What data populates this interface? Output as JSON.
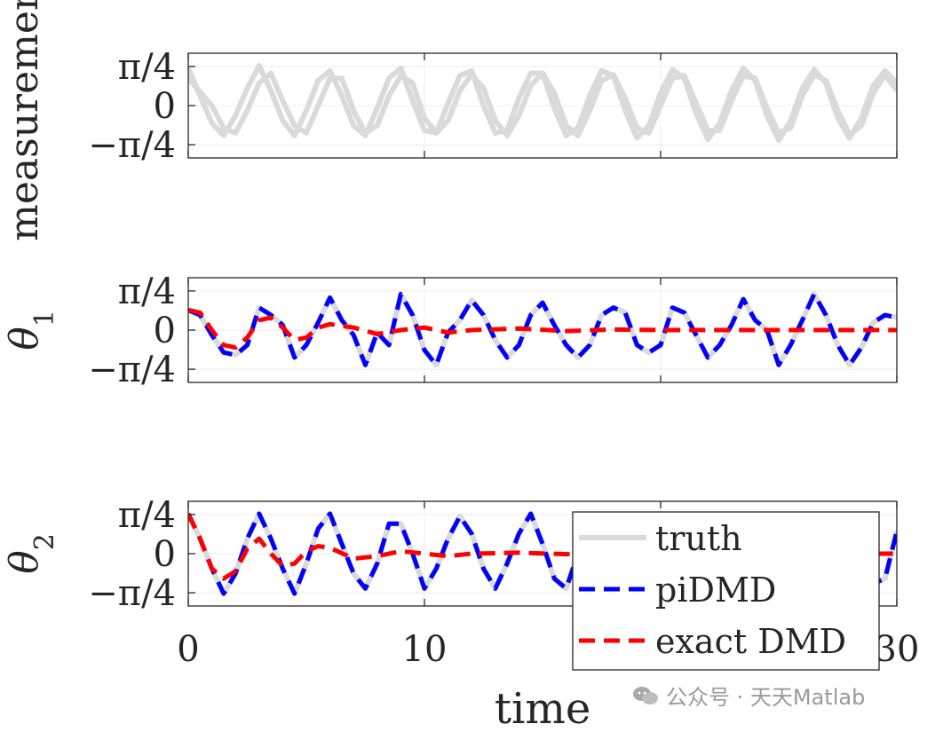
{
  "chart_data": [
    {
      "type": "line",
      "ylabel": "measurement",
      "xlabel": "",
      "xlim": [
        0,
        30
      ],
      "ylim": [
        -1.05,
        1.05
      ],
      "yticks": [
        "π/4",
        "0",
        "−π/4"
      ],
      "ytick_values": [
        0.785,
        0,
        -0.785
      ],
      "grid": true,
      "series": [
        {
          "role": "measurement-1",
          "color": "#dadada",
          "x": [
            0,
            1,
            1.5,
            2,
            2.5,
            3,
            3.5,
            4,
            4.5,
            5,
            5.5,
            6,
            6.5,
            7,
            7.5,
            8,
            8.5,
            9,
            9.5,
            10,
            10.5,
            11,
            11.5,
            12,
            12.5,
            13,
            13.5,
            14,
            14.5,
            15,
            15.5,
            16,
            16.5,
            17,
            17.5,
            18,
            18.5,
            19,
            19.5,
            20,
            20.5,
            21,
            21.5,
            22,
            22.5,
            23,
            23.5,
            24,
            24.5,
            25,
            25.5,
            26,
            26.5,
            27,
            27.5,
            28,
            28.5,
            29,
            29.5,
            30
          ],
          "y": [
            0.75,
            -0.35,
            -0.6,
            -0.2,
            0.35,
            0.8,
            0.3,
            -0.3,
            -0.6,
            -0.1,
            0.5,
            0.7,
            0.2,
            -0.4,
            -0.6,
            -0.05,
            0.55,
            0.75,
            0.1,
            -0.5,
            -0.55,
            0.05,
            0.6,
            0.7,
            0.0,
            -0.55,
            -0.5,
            0.15,
            0.65,
            0.65,
            -0.05,
            -0.6,
            -0.45,
            0.2,
            0.7,
            0.6,
            -0.1,
            -0.65,
            -0.4,
            0.25,
            0.72,
            0.55,
            -0.15,
            -0.68,
            -0.35,
            0.3,
            0.75,
            0.5,
            -0.2,
            -0.7,
            -0.3,
            0.35,
            0.72,
            0.45,
            -0.25,
            -0.65,
            -0.25,
            0.4,
            0.7,
            0.45
          ]
        },
        {
          "role": "measurement-2",
          "color": "#dadada",
          "x": [
            0,
            1,
            1.5,
            2,
            2.5,
            3,
            3.5,
            4,
            4.5,
            5,
            5.5,
            6,
            6.5,
            7,
            7.5,
            8,
            8.5,
            9,
            9.5,
            10,
            10.5,
            11,
            11.5,
            12,
            12.5,
            13,
            13.5,
            14,
            14.5,
            15,
            15.5,
            16,
            16.5,
            17,
            17.5,
            18,
            18.5,
            19,
            19.5,
            20,
            20.5,
            21,
            21.5,
            22,
            22.5,
            23,
            23.5,
            24,
            24.5,
            25,
            25.5,
            26,
            26.5,
            27,
            27.5,
            28,
            28.5,
            29,
            29.5,
            30
          ],
          "y": [
            0.55,
            0.0,
            -0.45,
            -0.55,
            -0.1,
            0.45,
            0.65,
            0.1,
            -0.4,
            -0.55,
            0.0,
            0.55,
            0.55,
            -0.1,
            -0.55,
            -0.4,
            0.2,
            0.6,
            0.45,
            -0.25,
            -0.55,
            -0.3,
            0.3,
            0.62,
            0.35,
            -0.3,
            -0.6,
            -0.2,
            0.4,
            0.65,
            0.25,
            -0.4,
            -0.6,
            -0.1,
            0.5,
            0.62,
            0.15,
            -0.45,
            -0.55,
            0.0,
            0.55,
            0.6,
            0.05,
            -0.5,
            -0.5,
            0.1,
            0.6,
            0.55,
            -0.05,
            -0.55,
            -0.45,
            0.2,
            0.62,
            0.5,
            -0.1,
            -0.58,
            -0.4,
            0.25,
            0.62,
            0.3
          ]
        }
      ]
    },
    {
      "type": "line",
      "ylabel": "θ1",
      "xlabel": "",
      "xlim": [
        0,
        30
      ],
      "ylim": [
        -1.05,
        1.05
      ],
      "yticks": [
        "π/4",
        "0",
        "−π/4"
      ],
      "ytick_values": [
        0.785,
        0,
        -0.785
      ],
      "grid": true,
      "series": [
        {
          "name": "truth",
          "color": "#dadada",
          "x": [
            0,
            0.5,
            1,
            1.5,
            2,
            2.5,
            3,
            3.5,
            4,
            4.5,
            5,
            5.5,
            6,
            6.5,
            7,
            7.5,
            8,
            8.5,
            9,
            9.5,
            10,
            10.5,
            11,
            11.5,
            12,
            12.5,
            13,
            13.5,
            14,
            14.5,
            15,
            15.5,
            16,
            16.5,
            17,
            17.5,
            18,
            18.5,
            19,
            19.5,
            20,
            20.5,
            21,
            21.5,
            22,
            22.5,
            23,
            23.5,
            24,
            24.5,
            25,
            25.5,
            26,
            26.5,
            27,
            27.5,
            28,
            28.5,
            29,
            29.5,
            30
          ],
          "y": [
            0.4,
            0.3,
            -0.1,
            -0.45,
            -0.5,
            -0.3,
            0.45,
            0.3,
            0.1,
            -0.55,
            -0.3,
            0.15,
            0.65,
            0.2,
            -0.1,
            -0.7,
            -0.05,
            -0.3,
            0.72,
            0.3,
            -0.4,
            -0.7,
            -0.05,
            0.2,
            0.6,
            0.3,
            -0.2,
            -0.55,
            -0.3,
            0.3,
            0.55,
            0.1,
            -0.3,
            -0.55,
            -0.3,
            0.3,
            0.45,
            0.35,
            -0.3,
            -0.45,
            -0.3,
            0.45,
            0.35,
            -0.1,
            -0.55,
            -0.3,
            0.1,
            0.62,
            0.2,
            0.0,
            -0.7,
            -0.3,
            0.2,
            0.72,
            0.3,
            -0.3,
            -0.7,
            -0.35,
            0.15,
            0.3,
            0.25
          ]
        },
        {
          "name": "piDMD",
          "color": "#0000ff",
          "x": [
            0,
            0.5,
            1,
            1.5,
            2,
            2.5,
            3,
            3.5,
            4,
            4.5,
            5,
            5.5,
            6,
            6.5,
            7,
            7.5,
            8,
            8.5,
            9,
            9.5,
            10,
            10.5,
            11,
            11.5,
            12,
            12.5,
            13,
            13.5,
            14,
            14.5,
            15,
            15.5,
            16,
            16.5,
            17,
            17.5,
            18,
            18.5,
            19,
            19.5,
            20,
            20.5,
            21,
            21.5,
            22,
            22.5,
            23,
            23.5,
            24,
            24.5,
            25,
            25.5,
            26,
            26.5,
            27,
            27.5,
            28,
            28.5,
            29,
            29.5,
            30
          ],
          "y": [
            0.4,
            0.3,
            -0.1,
            -0.45,
            -0.5,
            -0.3,
            0.45,
            0.3,
            0.1,
            -0.55,
            -0.3,
            0.15,
            0.65,
            0.2,
            -0.1,
            -0.7,
            -0.05,
            -0.3,
            0.72,
            0.3,
            -0.4,
            -0.7,
            -0.05,
            0.2,
            0.6,
            0.3,
            -0.2,
            -0.55,
            -0.3,
            0.3,
            0.55,
            0.1,
            -0.3,
            -0.55,
            -0.3,
            0.3,
            0.45,
            0.35,
            -0.3,
            -0.45,
            -0.3,
            0.45,
            0.35,
            -0.1,
            -0.55,
            -0.3,
            0.1,
            0.62,
            0.2,
            0.0,
            -0.7,
            -0.3,
            0.2,
            0.72,
            0.3,
            -0.3,
            -0.7,
            -0.35,
            0.15,
            0.3,
            0.25
          ]
        },
        {
          "name": "exact DMD",
          "color": "#ff0000",
          "x": [
            0,
            0.5,
            1,
            1.5,
            2,
            2.5,
            3,
            3.5,
            4,
            4.5,
            5,
            5.5,
            6,
            7,
            8,
            9,
            10,
            11,
            12,
            14,
            16,
            18,
            20,
            22,
            24,
            26,
            28,
            30
          ],
          "y": [
            0.4,
            0.35,
            0.0,
            -0.3,
            -0.35,
            -0.15,
            0.2,
            0.25,
            0.05,
            -0.2,
            -0.15,
            0.05,
            0.12,
            0.05,
            -0.08,
            0.0,
            0.05,
            -0.05,
            0.0,
            0.03,
            -0.02,
            0.01,
            0.0,
            0.0,
            0.0,
            0.0,
            0.0,
            0.0
          ]
        }
      ]
    },
    {
      "type": "line",
      "ylabel": "θ2",
      "xlabel": "time",
      "xlim": [
        0,
        30
      ],
      "ylim": [
        -1.05,
        1.05
      ],
      "xticks": [
        "0",
        "10",
        "20",
        "30"
      ],
      "xtick_values": [
        0,
        10,
        20,
        30
      ],
      "yticks": [
        "π/4",
        "0",
        "−π/4"
      ],
      "ytick_values": [
        0.785,
        0,
        -0.785
      ],
      "grid": true,
      "legend": {
        "position": "bottom-right",
        "entries": [
          "truth",
          "piDMD",
          "exact DMD"
        ]
      },
      "series": [
        {
          "name": "truth",
          "color": "#dadada",
          "x": [
            0,
            0.5,
            1,
            1.5,
            2,
            2.5,
            3,
            3.5,
            4,
            4.5,
            5,
            5.5,
            6,
            6.5,
            7,
            7.5,
            8,
            8.5,
            9,
            9.5,
            10,
            10.5,
            11,
            11.5,
            12,
            12.5,
            13,
            13.5,
            14,
            14.5,
            15,
            15.5,
            16,
            16.5,
            17,
            17.5,
            18,
            18.5,
            19,
            19.5,
            20,
            20.5,
            21,
            21.5,
            22,
            22.5,
            23,
            23.5,
            24,
            24.5,
            25,
            25.5,
            26,
            26.5,
            27,
            27.5,
            28,
            28.5,
            29,
            29.5,
            30
          ],
          "y": [
            0.8,
            0.3,
            -0.3,
            -0.8,
            -0.4,
            0.3,
            0.8,
            0.3,
            -0.3,
            -0.8,
            -0.2,
            0.5,
            0.8,
            0.2,
            -0.4,
            -0.7,
            -0.2,
            0.6,
            0.6,
            0.0,
            -0.7,
            -0.3,
            0.3,
            0.75,
            0.4,
            -0.3,
            -0.7,
            -0.2,
            0.4,
            0.8,
            0.2,
            -0.5,
            -0.7,
            0.0,
            0.7,
            0.5,
            -0.2,
            -0.8,
            -0.3,
            0.5,
            0.7,
            0.1,
            -0.6,
            -0.6,
            0.2,
            0.75,
            0.4,
            -0.4,
            -0.75,
            -0.1,
            0.6,
            0.6,
            -0.1,
            -0.75,
            -0.4,
            0.4,
            0.7,
            0.1,
            -0.6,
            -0.5,
            0.45
          ]
        },
        {
          "name": "piDMD",
          "color": "#0000ff",
          "x": [
            0,
            0.5,
            1,
            1.5,
            2,
            2.5,
            3,
            3.5,
            4,
            4.5,
            5,
            5.5,
            6,
            6.5,
            7,
            7.5,
            8,
            8.5,
            9,
            9.5,
            10,
            10.5,
            11,
            11.5,
            12,
            12.5,
            13,
            13.5,
            14,
            14.5,
            15,
            15.5,
            16,
            16.5,
            17,
            17.5,
            18,
            18.5,
            19,
            19.5,
            20,
            20.5,
            21,
            21.5,
            22,
            22.5,
            23,
            23.5,
            24,
            24.5,
            25,
            25.5,
            26,
            26.5,
            27,
            27.5,
            28,
            28.5,
            29,
            29.5,
            30
          ],
          "y": [
            0.8,
            0.3,
            -0.3,
            -0.8,
            -0.4,
            0.3,
            0.8,
            0.3,
            -0.3,
            -0.8,
            -0.2,
            0.5,
            0.8,
            0.2,
            -0.4,
            -0.7,
            -0.2,
            0.6,
            0.6,
            0.0,
            -0.7,
            -0.3,
            0.3,
            0.75,
            0.4,
            -0.3,
            -0.7,
            -0.2,
            0.4,
            0.8,
            0.2,
            -0.5,
            -0.7,
            0.0,
            0.7,
            0.5,
            -0.2,
            -0.8,
            -0.3,
            0.5,
            0.7,
            0.1,
            -0.6,
            -0.6,
            0.2,
            0.75,
            0.4,
            -0.4,
            -0.75,
            -0.1,
            0.6,
            0.6,
            -0.1,
            -0.75,
            -0.4,
            0.4,
            0.7,
            0.1,
            -0.6,
            -0.5,
            0.45
          ]
        },
        {
          "name": "exact DMD",
          "color": "#ff0000",
          "x": [
            0,
            0.5,
            1,
            1.5,
            2,
            2.5,
            3,
            3.5,
            4,
            4.5,
            5,
            5.5,
            6,
            7,
            8,
            9,
            10,
            11,
            12,
            14,
            16,
            18,
            20,
            22,
            24,
            26,
            28,
            30
          ],
          "y": [
            0.8,
            0.3,
            -0.3,
            -0.5,
            -0.35,
            0.1,
            0.3,
            0.0,
            -0.25,
            -0.2,
            0.05,
            0.15,
            0.12,
            -0.1,
            -0.05,
            0.05,
            0.0,
            -0.05,
            0.0,
            0.02,
            -0.01,
            0.0,
            0.0,
            0.0,
            0.0,
            0.0,
            0.0,
            0.0
          ]
        }
      ]
    }
  ],
  "watermark": {
    "text": "公众号 · 天天Matlab",
    "icon": "wechat-icon"
  }
}
